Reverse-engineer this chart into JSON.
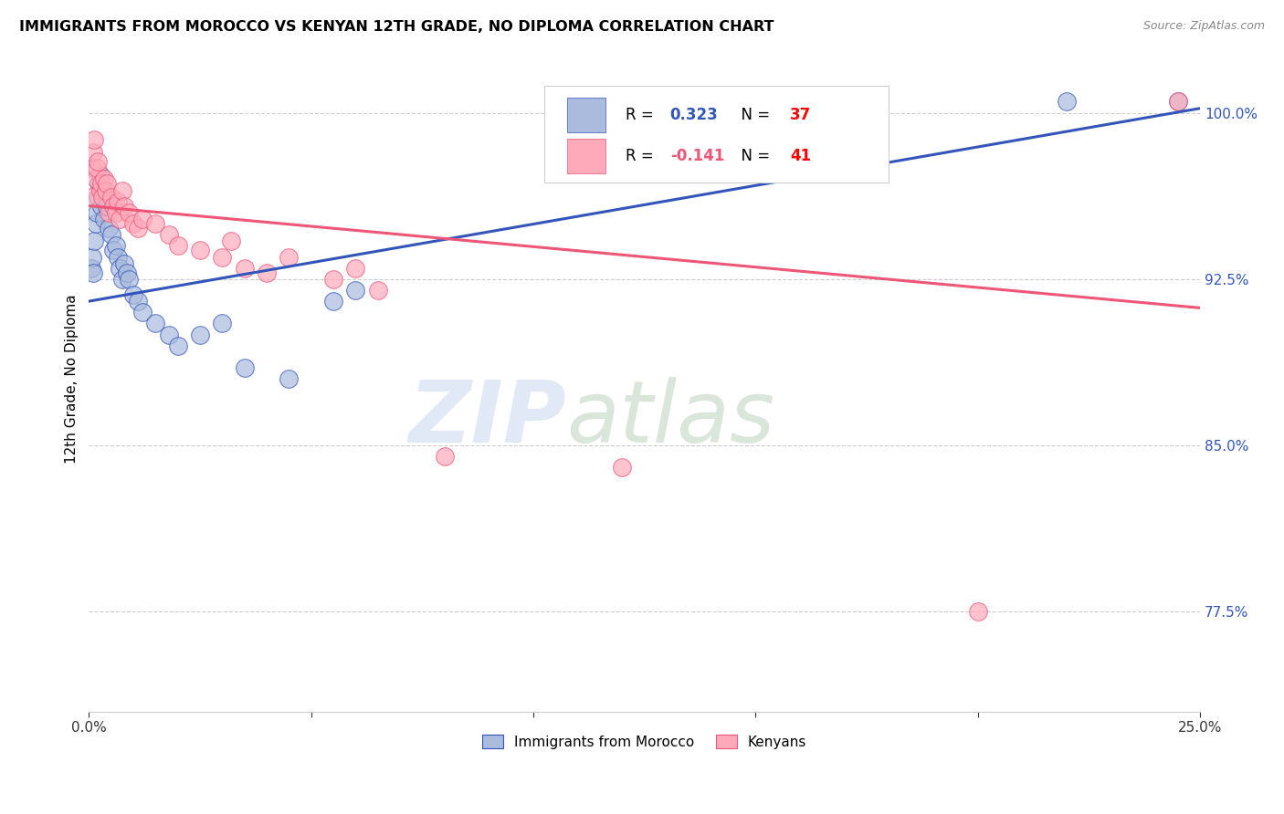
{
  "title": "IMMIGRANTS FROM MOROCCO VS KENYAN 12TH GRADE, NO DIPLOMA CORRELATION CHART",
  "source": "Source: ZipAtlas.com",
  "ylabel": "12th Grade, No Diploma",
  "yticks": [
    77.5,
    85.0,
    92.5,
    100.0
  ],
  "ytick_labels": [
    "77.5%",
    "85.0%",
    "92.5%",
    "100.0%"
  ],
  "xmin": 0.0,
  "xmax": 25.0,
  "ymin": 73.0,
  "ymax": 103.0,
  "legend_blue_label": "Immigrants from Morocco",
  "legend_pink_label": "Kenyans",
  "r_blue": 0.323,
  "n_blue": 37,
  "r_pink": -0.141,
  "n_pink": 41,
  "blue_color": "#aabbdd",
  "pink_color": "#ffaabb",
  "blue_line_color": "#3355bb",
  "pink_line_color": "#ee5577",
  "watermark_zip": "ZIP",
  "watermark_atlas": "atlas",
  "blue_trend": [
    0.0,
    91.5,
    25.0,
    100.2
  ],
  "pink_trend": [
    0.0,
    95.8,
    25.0,
    91.2
  ],
  "blue_points": [
    [
      0.05,
      93.0
    ],
    [
      0.08,
      93.5
    ],
    [
      0.1,
      92.8
    ],
    [
      0.12,
      94.2
    ],
    [
      0.15,
      95.0
    ],
    [
      0.18,
      95.5
    ],
    [
      0.2,
      96.2
    ],
    [
      0.22,
      96.8
    ],
    [
      0.25,
      97.2
    ],
    [
      0.28,
      95.8
    ],
    [
      0.3,
      96.5
    ],
    [
      0.35,
      95.2
    ],
    [
      0.4,
      95.8
    ],
    [
      0.45,
      94.8
    ],
    [
      0.5,
      94.5
    ],
    [
      0.55,
      93.8
    ],
    [
      0.6,
      94.0
    ],
    [
      0.65,
      93.5
    ],
    [
      0.7,
      93.0
    ],
    [
      0.75,
      92.5
    ],
    [
      0.8,
      93.2
    ],
    [
      0.85,
      92.8
    ],
    [
      0.9,
      92.5
    ],
    [
      1.0,
      91.8
    ],
    [
      1.1,
      91.5
    ],
    [
      1.2,
      91.0
    ],
    [
      1.5,
      90.5
    ],
    [
      1.8,
      90.0
    ],
    [
      2.0,
      89.5
    ],
    [
      2.5,
      90.0
    ],
    [
      3.0,
      90.5
    ],
    [
      3.5,
      88.5
    ],
    [
      4.5,
      88.0
    ],
    [
      5.5,
      91.5
    ],
    [
      6.0,
      92.0
    ],
    [
      22.0,
      100.5
    ],
    [
      24.5,
      100.5
    ]
  ],
  "pink_points": [
    [
      0.05,
      96.2
    ],
    [
      0.08,
      97.5
    ],
    [
      0.1,
      98.2
    ],
    [
      0.12,
      98.8
    ],
    [
      0.15,
      97.0
    ],
    [
      0.18,
      97.5
    ],
    [
      0.2,
      97.8
    ],
    [
      0.25,
      96.5
    ],
    [
      0.28,
      96.8
    ],
    [
      0.3,
      96.2
    ],
    [
      0.35,
      97.0
    ],
    [
      0.38,
      96.5
    ],
    [
      0.4,
      96.8
    ],
    [
      0.45,
      95.5
    ],
    [
      0.5,
      96.2
    ],
    [
      0.55,
      95.8
    ],
    [
      0.6,
      95.5
    ],
    [
      0.65,
      96.0
    ],
    [
      0.7,
      95.2
    ],
    [
      0.75,
      96.5
    ],
    [
      0.8,
      95.8
    ],
    [
      0.9,
      95.5
    ],
    [
      1.0,
      95.0
    ],
    [
      1.1,
      94.8
    ],
    [
      1.2,
      95.2
    ],
    [
      1.5,
      95.0
    ],
    [
      1.8,
      94.5
    ],
    [
      2.0,
      94.0
    ],
    [
      2.5,
      93.8
    ],
    [
      3.0,
      93.5
    ],
    [
      3.2,
      94.2
    ],
    [
      3.5,
      93.0
    ],
    [
      4.0,
      92.8
    ],
    [
      4.5,
      93.5
    ],
    [
      5.5,
      92.5
    ],
    [
      6.0,
      93.0
    ],
    [
      6.5,
      92.0
    ],
    [
      8.0,
      84.5
    ],
    [
      12.0,
      84.0
    ],
    [
      20.0,
      77.5
    ],
    [
      24.5,
      100.5
    ]
  ]
}
